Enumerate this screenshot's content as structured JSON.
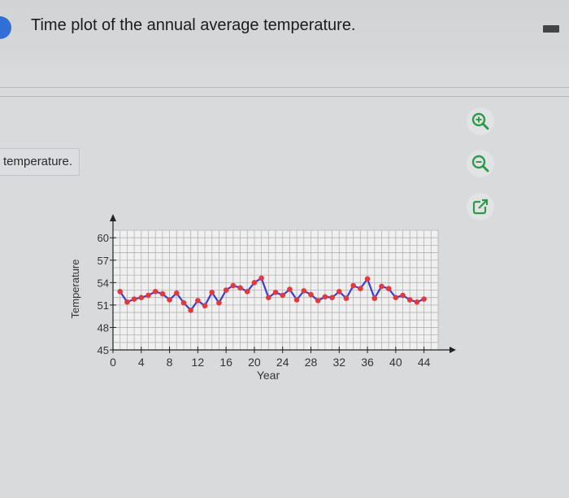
{
  "header": {
    "title": "Time plot of the annual average temperature."
  },
  "side_panel": {
    "label": "temperature."
  },
  "toolbar": {
    "zoom_in_icon": "zoom-in-icon",
    "zoom_out_icon": "zoom-out-icon",
    "open_external_icon": "open-external-icon"
  },
  "colors": {
    "accent": "#2f6fd6",
    "icon_green": "#2e9a4a",
    "line": "#3a3cd6",
    "points": "#e23a3a",
    "grid": "#b3b3b3"
  },
  "chart_data": {
    "type": "line",
    "xlabel": "Year",
    "ylabel": "Temperature",
    "xlim": [
      0,
      46
    ],
    "ylim": [
      45,
      61
    ],
    "x_ticks": [
      0,
      4,
      8,
      12,
      16,
      20,
      24,
      28,
      32,
      36,
      40,
      44
    ],
    "y_ticks": [
      45,
      48,
      51,
      54,
      57,
      60
    ],
    "grid": true,
    "series": [
      {
        "x": [
          1,
          2,
          3,
          4,
          5,
          6,
          7,
          8,
          9,
          10,
          11,
          12,
          13,
          14,
          15,
          16,
          17,
          18,
          19,
          20,
          21,
          22,
          23,
          24,
          25,
          26,
          27,
          28,
          29,
          30,
          31,
          32,
          33,
          34,
          35,
          36,
          37,
          38,
          39,
          40,
          41,
          42,
          43,
          44
        ],
        "values": [
          52.8,
          51.4,
          51.8,
          52.0,
          52.3,
          52.8,
          52.5,
          51.7,
          52.6,
          51.3,
          50.3,
          51.6,
          50.9,
          52.7,
          51.3,
          53.0,
          53.6,
          53.3,
          52.8,
          54.0,
          54.6,
          52.0,
          52.7,
          52.3,
          53.1,
          51.7,
          52.9,
          52.4,
          51.6,
          52.1,
          52.0,
          52.8,
          51.9,
          53.6,
          53.2,
          54.5,
          51.9,
          53.5,
          53.2,
          52.0,
          52.3,
          51.7,
          51.4,
          51.8
        ]
      }
    ]
  }
}
